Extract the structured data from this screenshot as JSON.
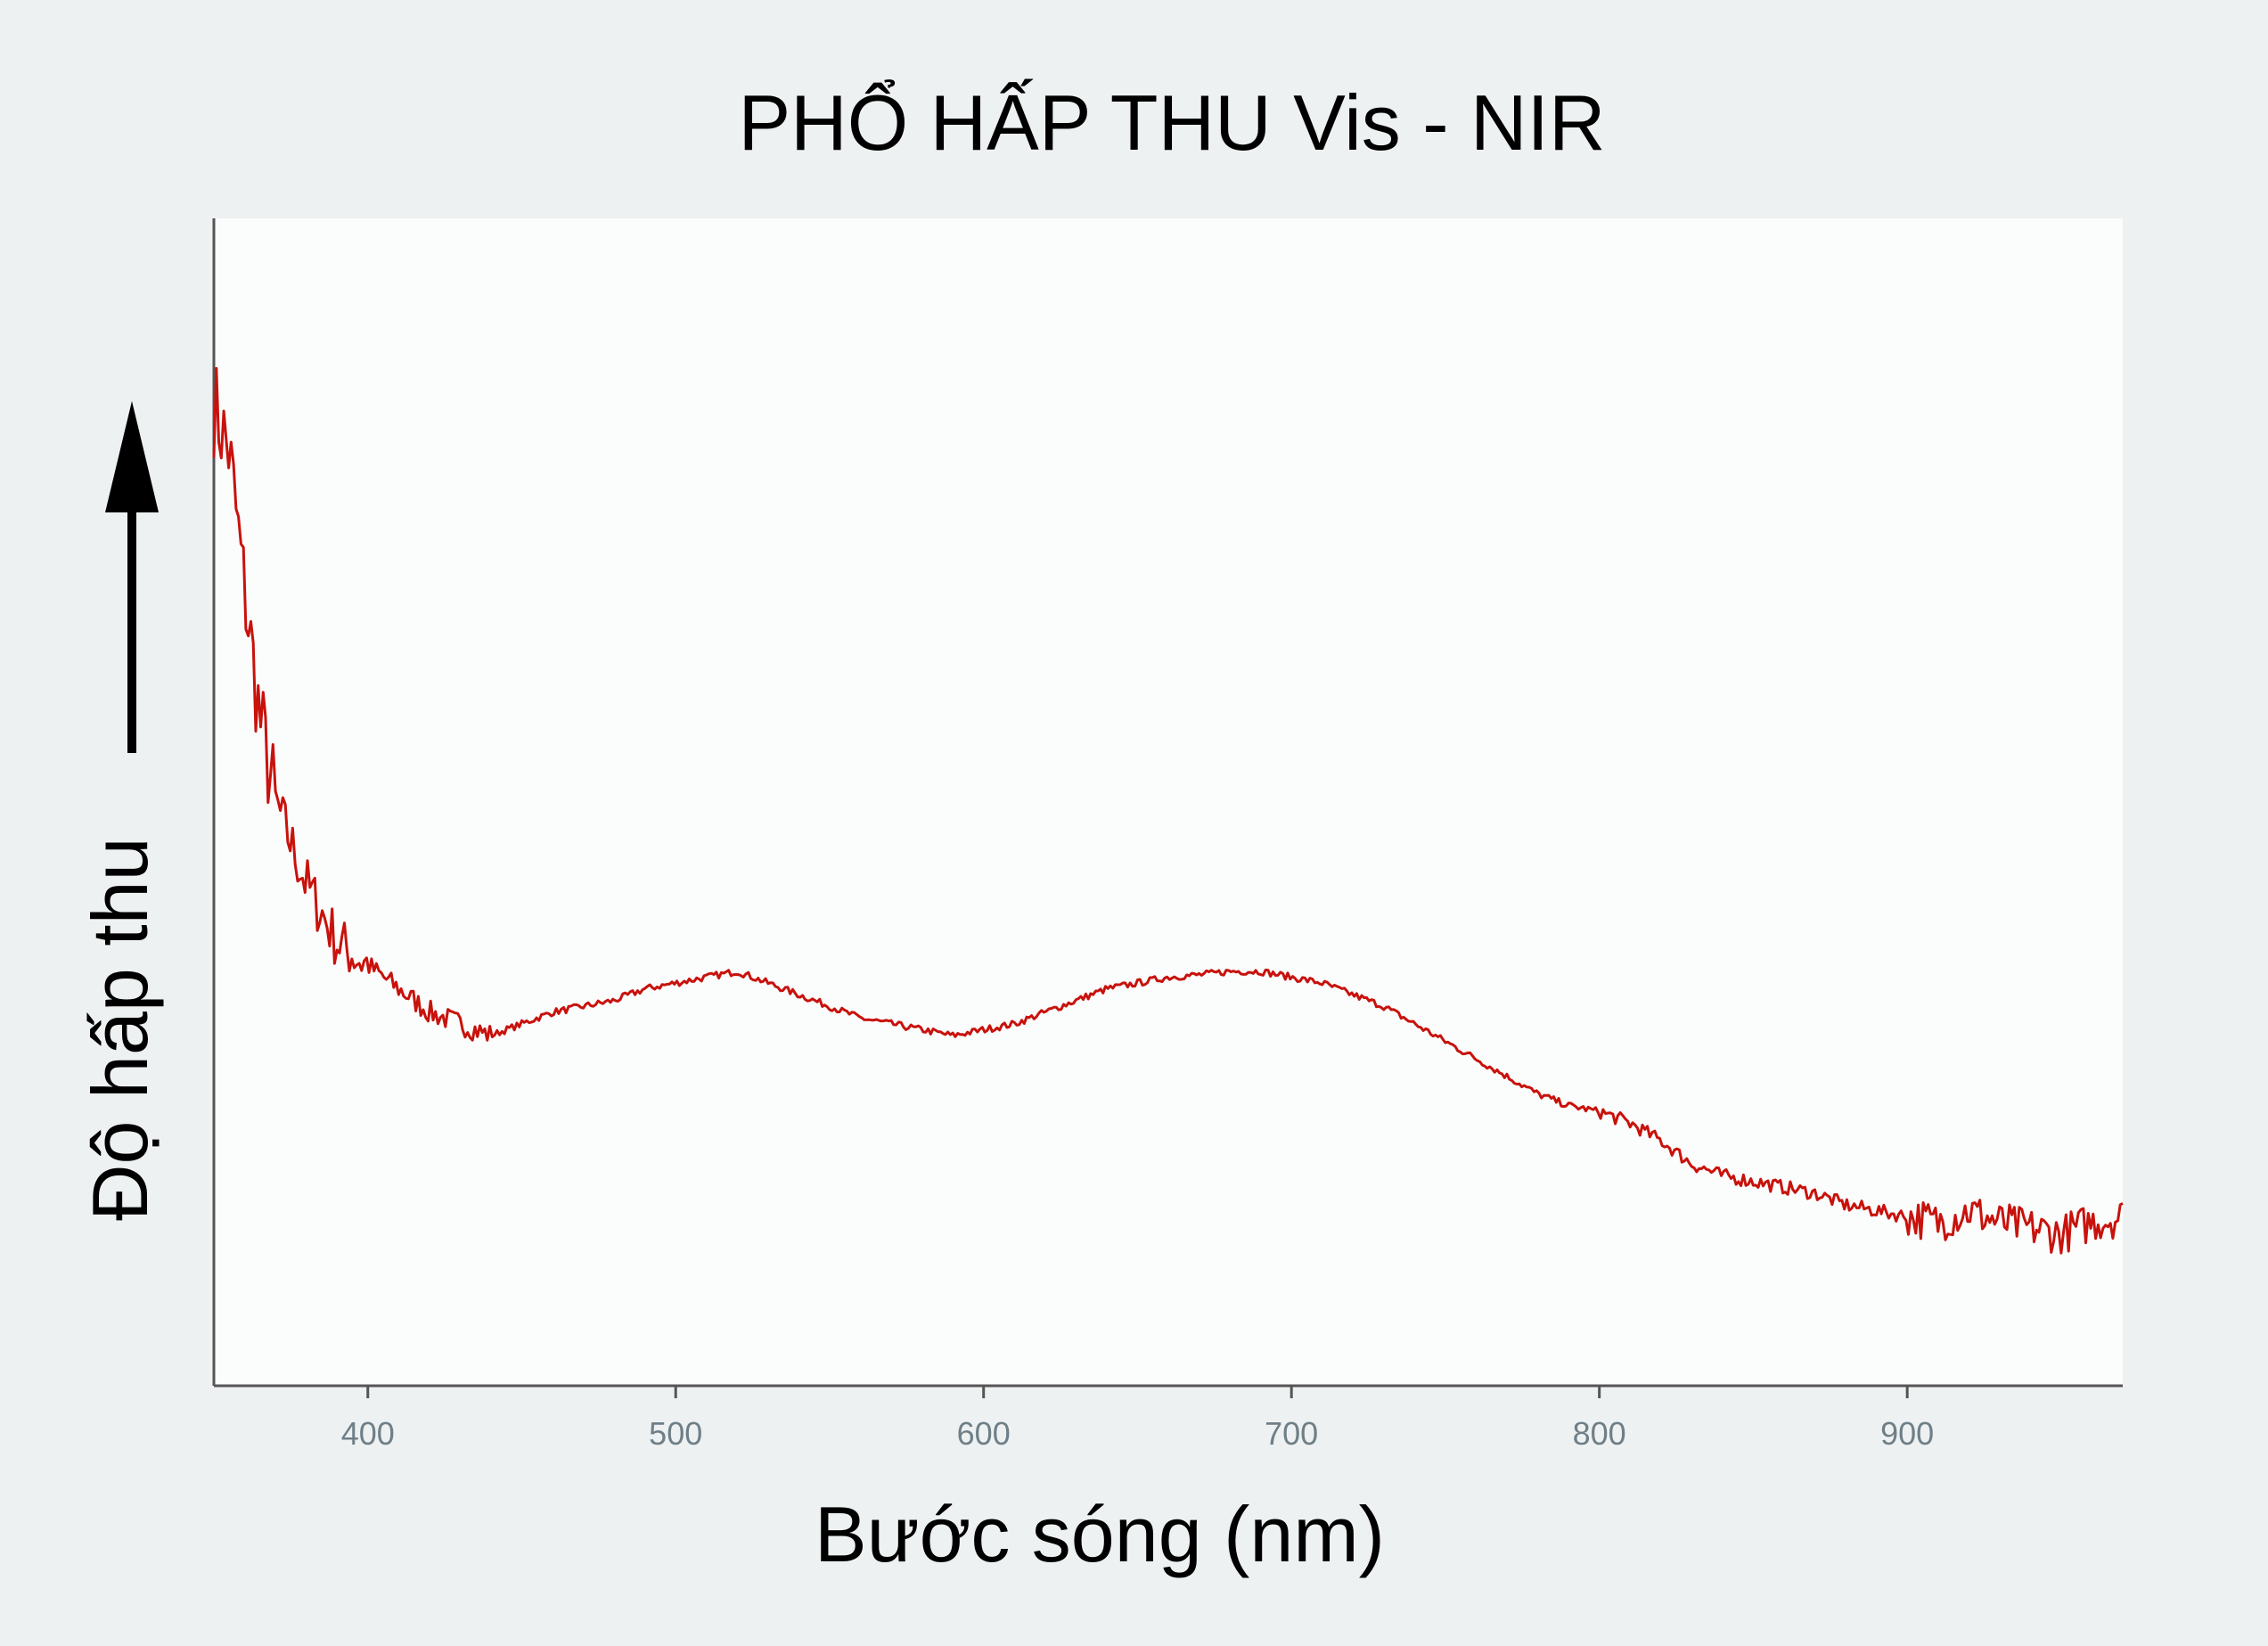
{
  "chart_data": {
    "type": "line",
    "title": "PHỔ HẤP THU Vis - NIR",
    "xlabel": "Bước sóng (nm)",
    "ylabel": "Độ hấp thu",
    "xlim": [
      350,
      970
    ],
    "ylim": [
      0,
      1
    ],
    "x_ticks": [
      400,
      500,
      600,
      700,
      800,
      900
    ],
    "x_tick_labels": [
      "400",
      "500",
      "600",
      "700",
      "800",
      "900"
    ],
    "y_ticks_shown": false,
    "grid": false,
    "legend": "none",
    "series": [
      {
        "color": "#c8120c",
        "x": [
          350,
          355,
          360,
          365,
          370,
          380,
          390,
          400,
          410,
          420,
          430,
          440,
          450,
          460,
          470,
          480,
          490,
          500,
          510,
          520,
          530,
          540,
          550,
          560,
          570,
          580,
          590,
          600,
          610,
          620,
          630,
          640,
          650,
          660,
          670,
          680,
          690,
          700,
          710,
          720,
          730,
          740,
          750,
          760,
          770,
          780,
          790,
          800,
          810,
          820,
          830,
          840,
          850,
          860,
          870,
          880,
          890,
          900,
          910,
          920,
          930,
          940,
          950,
          960,
          970
        ],
        "y": [
          0.84,
          0.8,
          0.68,
          0.57,
          0.5,
          0.43,
          0.38,
          0.36,
          0.34,
          0.32,
          0.31,
          0.3,
          0.31,
          0.32,
          0.325,
          0.33,
          0.34,
          0.345,
          0.35,
          0.355,
          0.345,
          0.335,
          0.325,
          0.315,
          0.31,
          0.305,
          0.3,
          0.305,
          0.31,
          0.32,
          0.33,
          0.34,
          0.345,
          0.35,
          0.352,
          0.355,
          0.355,
          0.35,
          0.345,
          0.335,
          0.325,
          0.31,
          0.295,
          0.28,
          0.265,
          0.25,
          0.24,
          0.235,
          0.225,
          0.21,
          0.19,
          0.18,
          0.175,
          0.17,
          0.165,
          0.155,
          0.15,
          0.145,
          0.14,
          0.15,
          0.14,
          0.135,
          0.13,
          0.14,
          0.145
        ]
      }
    ]
  }
}
